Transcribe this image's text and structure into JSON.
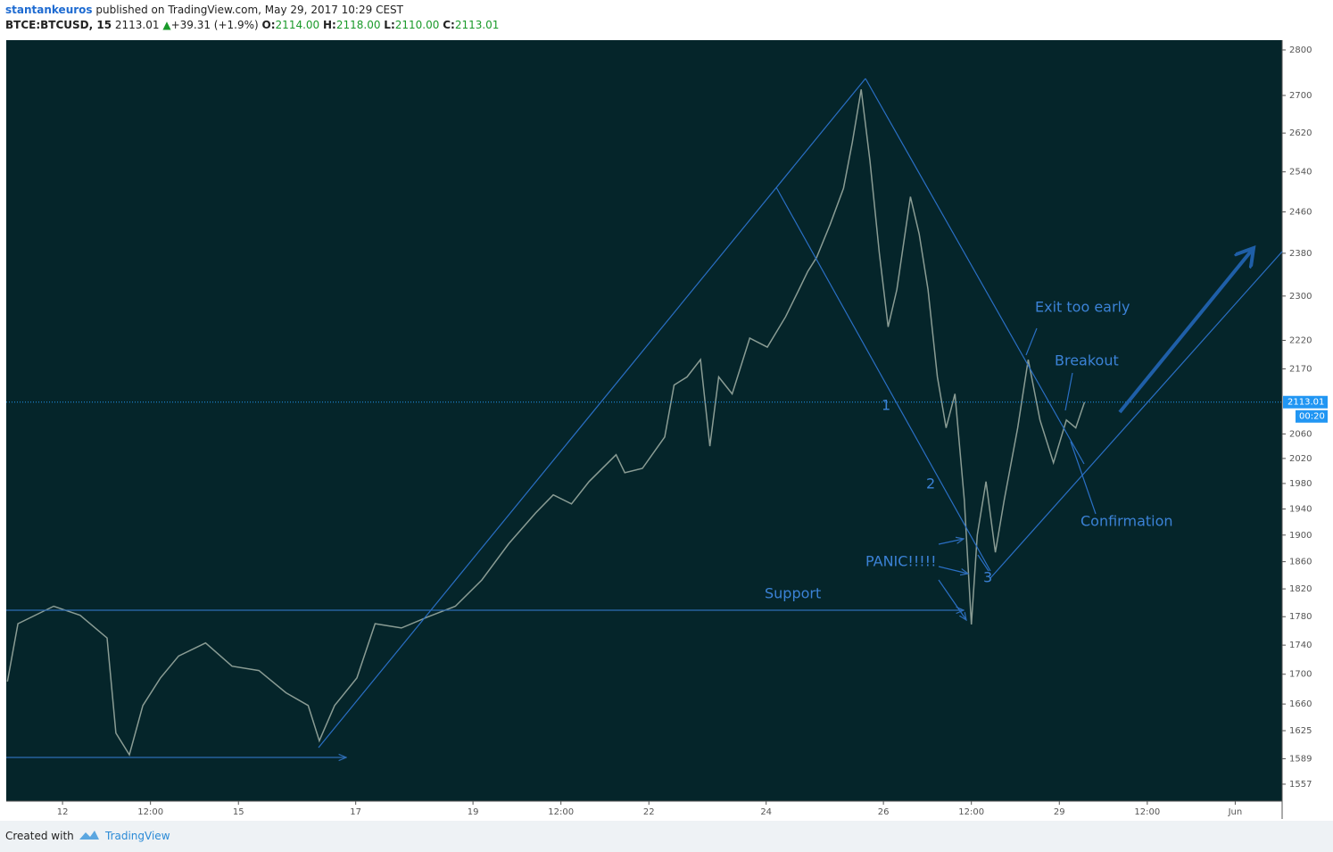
{
  "header": {
    "author": "stantankeuros",
    "published": "published on TradingView.com, May 29, 2017 10:29 CEST",
    "symbol": "BTCE:BTCUSD, 15",
    "last": "2113.01",
    "change": "+39.31 (+1.9%)",
    "o_label": "O:",
    "open": "2114.00",
    "h_label": "H:",
    "high": "2118.00",
    "l_label": "L:",
    "low": "2110.00",
    "c_label": "C:",
    "close": "2113.01"
  },
  "footer": {
    "created_with": "Created with",
    "brand": "TradingView"
  },
  "chart_data": {
    "type": "line",
    "color": "#8a9c94",
    "log_scale": true,
    "x": [
      11.06,
      11.24,
      11.85,
      12.3,
      12.76,
      12.91,
      13.14,
      13.37,
      13.67,
      13.98,
      14.44,
      14.89,
      15.35,
      15.81,
      16.19,
      16.38,
      16.64,
      17.02,
      17.33,
      17.78,
      18.24,
      18.7,
      19.15,
      19.61,
      20.07,
      20.37,
      20.68,
      20.98,
      21.44,
      21.59,
      21.89,
      22.27,
      22.43,
      22.65,
      22.88,
      23.04,
      23.19,
      23.42,
      23.72,
      24.02,
      24.33,
      24.56,
      24.71,
      24.86,
      25.09,
      25.32,
      25.47,
      25.62,
      25.77,
      25.93,
      26.08,
      26.23,
      26.46,
      26.61,
      26.76,
      26.92,
      27.07,
      27.22,
      27.38,
      27.5,
      27.6,
      27.75,
      27.91,
      28.06,
      28.29,
      28.47,
      28.67,
      28.9,
      29.12,
      29.28,
      29.43
    ],
    "values": [
      1690,
      1770,
      1795,
      1782,
      1750,
      1622,
      1594,
      1658,
      1695,
      1725,
      1743,
      1711,
      1705,
      1675,
      1658,
      1612,
      1658,
      1695,
      1770,
      1764,
      1780,
      1795,
      1833,
      1887,
      1934,
      1962,
      1948,
      1983,
      2026,
      1997,
      2004,
      2055,
      2142,
      2156,
      2186,
      2040,
      2156,
      2127,
      2224,
      2208,
      2262,
      2312,
      2346,
      2372,
      2435,
      2507,
      2601,
      2713,
      2563,
      2381,
      2244,
      2312,
      2490,
      2417,
      2312,
      2156,
      2070,
      2127,
      1954,
      1769,
      1900,
      1983,
      1874,
      1954,
      2070,
      2186,
      2083,
      2013,
      2083,
      2070,
      2113.01
    ],
    "xlim": [
      11.04,
      32.8
    ],
    "ylim": [
      1536,
      2822
    ],
    "xticks": [
      12,
      {
        "value": 13.5,
        "label": "12:00"
      },
      15,
      17,
      19,
      {
        "value": 20.5,
        "label": "12:00"
      },
      22,
      24,
      26,
      {
        "value": 27.5,
        "label": "12:00"
      },
      29,
      {
        "value": 30.5,
        "label": "12:00"
      },
      {
        "value": 32,
        "label": "Jun"
      }
    ],
    "yticks": [
      2800,
      2700,
      2620,
      2540,
      2460,
      2380,
      2300,
      2220,
      2170,
      2060,
      2020,
      1980,
      1940,
      1900,
      1860,
      1820,
      1780,
      1740,
      1700,
      1660,
      1625,
      1589,
      1557
    ],
    "current_price": 2113.01,
    "countdown": "00:20",
    "annotations": [
      "Exit too early",
      "Breakout",
      "Confirmation",
      "PANIC!!!!!",
      "Support",
      "1",
      "2",
      "3"
    ]
  }
}
